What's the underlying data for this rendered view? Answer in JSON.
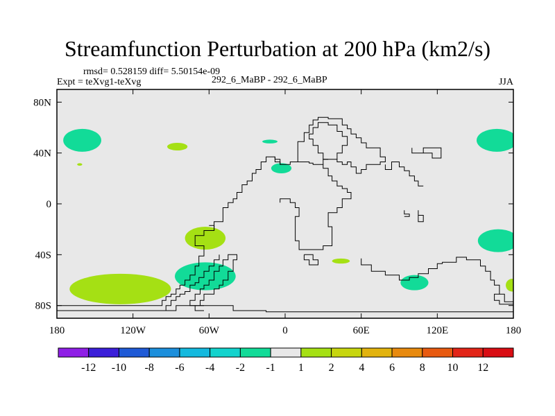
{
  "chart_data": {
    "type": "heatmap",
    "title": "Streamfunction Perturbation at 200 hPa (km2/s)",
    "stats": "rmsd= 0.528159 diff= 5.50154e-09",
    "experiment": "Expt = teXvg1-teXvg",
    "case": "292_6_MaBP - 292_6_MaBP",
    "season": "JJA",
    "xlabel": "",
    "ylabel": "",
    "x_range": [
      -180,
      180
    ],
    "y_range": [
      -90,
      90
    ],
    "x_ticks": [
      {
        "value": -180,
        "label": "180"
      },
      {
        "value": -120,
        "label": "120W"
      },
      {
        "value": -60,
        "label": "60W"
      },
      {
        "value": 0,
        "label": "0"
      },
      {
        "value": 60,
        "label": "60E"
      },
      {
        "value": 120,
        "label": "120E"
      },
      {
        "value": 180,
        "label": "180"
      }
    ],
    "y_ticks": [
      {
        "value": 80,
        "label": "80N"
      },
      {
        "value": 40,
        "label": "40N"
      },
      {
        "value": 0,
        "label": "0"
      },
      {
        "value": -40,
        "label": "40S"
      },
      {
        "value": -80,
        "label": "80S"
      }
    ],
    "background_color": "#e8e8e8",
    "contour_levels": [
      "-12",
      "-10",
      "-8",
      "-6",
      "-4",
      "-2",
      "-1",
      "1",
      "2",
      "4",
      "6",
      "8",
      "10",
      "12"
    ],
    "colorbar_colors": [
      "#8f1fe6",
      "#3b1fd9",
      "#1f5ad6",
      "#1c8fdc",
      "#14b9de",
      "#13d3cd",
      "#12db98",
      "#e8e8e8",
      "#a5e014",
      "#c7d60f",
      "#e2b30e",
      "#e88a0e",
      "#e85a10",
      "#e22518",
      "#d90d14"
    ],
    "anomalies": [
      {
        "lon": -160,
        "lat": 50,
        "rlon": 15,
        "rlat": 9,
        "color": "#12db98"
      },
      {
        "lon": -162,
        "lat": 31,
        "rlon": 2,
        "rlat": 1,
        "color": "#a5e014"
      },
      {
        "lon": -85,
        "lat": 45,
        "rlon": 8,
        "rlat": 3,
        "color": "#a5e014"
      },
      {
        "lon": -12,
        "lat": 49,
        "rlon": 6,
        "rlat": 1.5,
        "color": "#12db98"
      },
      {
        "lon": -3,
        "lat": 28,
        "rlon": 8,
        "rlat": 4,
        "color": "#12db98"
      },
      {
        "lon": -63,
        "lat": -27,
        "rlon": 16,
        "rlat": 9,
        "color": "#a5e014"
      },
      {
        "lon": -130,
        "lat": -67,
        "rlon": 40,
        "rlat": 12,
        "color": "#a5e014"
      },
      {
        "lon": -63,
        "lat": -57,
        "rlon": 24,
        "rlat": 11,
        "color": "#12db98"
      },
      {
        "lon": 44,
        "lat": -45,
        "rlon": 7,
        "rlat": 2,
        "color": "#a5e014"
      },
      {
        "lon": 102,
        "lat": -62,
        "rlon": 11,
        "rlat": 6,
        "color": "#12db98"
      },
      {
        "lon": 168,
        "lat": -29,
        "rlon": 16,
        "rlat": 9,
        "color": "#12db98"
      },
      {
        "lon": 167,
        "lat": 50,
        "rlon": 16,
        "rlat": 9,
        "color": "#12db98"
      },
      {
        "lon": 179,
        "lat": -64,
        "rlon": 5,
        "rlat": 5,
        "color": "#a5e014"
      }
    ],
    "coastlines": [
      [
        [
          -180,
          -80
        ],
        [
          -97,
          -80
        ],
        [
          -97,
          -76
        ],
        [
          -94,
          -76
        ],
        [
          -94,
          -73
        ],
        [
          -90,
          -73
        ],
        [
          -90,
          -71
        ],
        [
          -86,
          -71
        ],
        [
          -86,
          -67
        ],
        [
          -83,
          -67
        ],
        [
          -83,
          -64
        ],
        [
          -79,
          -64
        ],
        [
          -79,
          -60
        ],
        [
          -75,
          -60
        ],
        [
          -75,
          -56
        ],
        [
          -71,
          -56
        ],
        [
          -71,
          -49
        ],
        [
          -68,
          -49
        ],
        [
          -68,
          -41
        ],
        [
          -64,
          -41
        ],
        [
          -64,
          -33
        ],
        [
          -71,
          -33
        ],
        [
          -71,
          -25
        ],
        [
          -64,
          -25
        ],
        [
          -64,
          -21
        ],
        [
          -56,
          -21
        ],
        [
          -56,
          -14
        ],
        [
          -49,
          -14
        ],
        [
          -49,
          -3
        ],
        [
          -45,
          -3
        ],
        [
          -45,
          1
        ],
        [
          -41,
          1
        ],
        [
          -41,
          4
        ],
        [
          -38,
          4
        ],
        [
          -38,
          9
        ],
        [
          -34,
          9
        ],
        [
          -34,
          15
        ],
        [
          -30,
          15
        ],
        [
          -30,
          18
        ],
        [
          -26,
          18
        ],
        [
          -26,
          24
        ],
        [
          -23,
          24
        ],
        [
          -23,
          27
        ],
        [
          -19,
          27
        ],
        [
          -19,
          33
        ],
        [
          -15,
          33
        ],
        [
          -15,
          37
        ],
        [
          -8,
          37
        ],
        [
          -8,
          33
        ],
        [
          -4,
          33
        ],
        [
          -4,
          31
        ],
        [
          4,
          31
        ],
        [
          4,
          33
        ],
        [
          19,
          33
        ],
        [
          19,
          32
        ],
        [
          22,
          32
        ],
        [
          22,
          31
        ],
        [
          30,
          31
        ],
        [
          30,
          28
        ],
        [
          34,
          28
        ],
        [
          34,
          22
        ],
        [
          37,
          22
        ],
        [
          37,
          18
        ],
        [
          41,
          18
        ],
        [
          41,
          14
        ],
        [
          45,
          14
        ],
        [
          45,
          12
        ],
        [
          49,
          12
        ],
        [
          49,
          9
        ],
        [
          52,
          9
        ],
        [
          52,
          4
        ],
        [
          45,
          4
        ],
        [
          45,
          -3
        ],
        [
          41,
          -3
        ],
        [
          41,
          -7
        ],
        [
          34,
          -7
        ],
        [
          34,
          -18
        ],
        [
          37,
          -18
        ],
        [
          37,
          -33
        ],
        [
          30,
          -33
        ],
        [
          30,
          -36
        ],
        [
          11,
          -36
        ],
        [
          11,
          -29
        ],
        [
          8,
          -29
        ],
        [
          8,
          -10
        ],
        [
          11,
          -10
        ],
        [
          11,
          -3
        ],
        [
          8,
          -3
        ],
        [
          8,
          1
        ],
        [
          4,
          1
        ],
        [
          4,
          4
        ],
        [
          -4,
          4
        ],
        [
          -4,
          1
        ]
      ],
      [
        [
          -180,
          -84
        ],
        [
          -86,
          -84
        ],
        [
          -86,
          -80
        ],
        [
          -41,
          -80
        ],
        [
          -41,
          -84
        ],
        [
          -15,
          -84
        ],
        [
          -15,
          -85
        ],
        [
          180,
          -85
        ]
      ],
      [
        [
          -64,
          -84
        ],
        [
          -71,
          -84
        ],
        [
          -71,
          -80
        ],
        [
          -67,
          -80
        ],
        [
          -67,
          -76
        ],
        [
          -64,
          -76
        ],
        [
          -64,
          -71
        ],
        [
          -56,
          -71
        ],
        [
          -56,
          -67
        ],
        [
          -52,
          -67
        ],
        [
          -52,
          -64
        ],
        [
          -49,
          -64
        ],
        [
          -49,
          -60
        ],
        [
          -45,
          -60
        ],
        [
          -45,
          -53
        ],
        [
          -41,
          -53
        ],
        [
          -41,
          -44
        ],
        [
          -38,
          -44
        ],
        [
          -38,
          -40
        ],
        [
          -45,
          -40
        ],
        [
          -45,
          -44
        ],
        [
          -49,
          -44
        ],
        [
          -49,
          -49
        ],
        [
          -52,
          -49
        ],
        [
          -52,
          -53
        ],
        [
          -56,
          -53
        ],
        [
          -56,
          -60
        ],
        [
          -60,
          -60
        ],
        [
          -60,
          -64
        ],
        [
          -64,
          -64
        ],
        [
          -64,
          -67
        ],
        [
          -67,
          -67
        ],
        [
          -67,
          -71
        ],
        [
          -71,
          -71
        ],
        [
          -71,
          -76
        ],
        [
          -75,
          -76
        ],
        [
          -75,
          -80
        ],
        [
          -64,
          -80
        ]
      ],
      [
        [
          -94,
          -84
        ],
        [
          -94,
          -80
        ],
        [
          -90,
          -80
        ],
        [
          -90,
          -76
        ],
        [
          -86,
          -76
        ],
        [
          -86,
          -73
        ],
        [
          -83,
          -73
        ],
        [
          -83,
          -71
        ],
        [
          -79,
          -71
        ],
        [
          -79,
          -69
        ],
        [
          -75,
          -69
        ],
        [
          -75,
          -64
        ],
        [
          -71,
          -64
        ],
        [
          -71,
          -62
        ],
        [
          -68,
          -62
        ],
        [
          -68,
          -58
        ],
        [
          -64,
          -58
        ],
        [
          -64,
          -53
        ],
        [
          -60,
          -53
        ],
        [
          -60,
          -49
        ],
        [
          -56,
          -49
        ],
        [
          -56,
          -44
        ],
        [
          -52,
          -44
        ],
        [
          -52,
          -40
        ]
      ],
      [
        [
          10,
          33
        ],
        [
          10,
          49
        ],
        [
          15,
          49
        ],
        [
          15,
          56
        ],
        [
          19,
          56
        ],
        [
          19,
          62
        ],
        [
          22,
          62
        ],
        [
          22,
          66
        ],
        [
          26,
          66
        ],
        [
          26,
          68
        ],
        [
          34,
          68
        ],
        [
          34,
          67
        ],
        [
          45,
          67
        ],
        [
          45,
          62
        ],
        [
          49,
          62
        ],
        [
          49,
          59
        ],
        [
          52,
          59
        ],
        [
          52,
          55
        ],
        [
          56,
          55
        ],
        [
          56,
          52
        ],
        [
          60,
          52
        ],
        [
          60,
          48
        ],
        [
          64,
          48
        ],
        [
          64,
          44
        ],
        [
          75,
          44
        ],
        [
          75,
          37
        ],
        [
          79,
          37
        ],
        [
          79,
          33
        ],
        [
          75,
          33
        ],
        [
          75,
          31
        ],
        [
          64,
          31
        ],
        [
          64,
          27
        ],
        [
          60,
          27
        ],
        [
          60,
          24
        ],
        [
          56,
          24
        ],
        [
          56,
          29
        ],
        [
          52,
          29
        ],
        [
          52,
          33
        ],
        [
          49,
          33
        ],
        [
          49,
          31
        ],
        [
          45,
          31
        ],
        [
          45,
          33
        ],
        [
          41,
          33
        ],
        [
          41,
          35
        ],
        [
          30,
          35
        ],
        [
          30,
          31
        ]
      ],
      [
        [
          34,
          35
        ],
        [
          30,
          35
        ],
        [
          30,
          40
        ],
        [
          26,
          40
        ],
        [
          26,
          46
        ],
        [
          22,
          46
        ],
        [
          22,
          51
        ],
        [
          19,
          51
        ],
        [
          19,
          55
        ],
        [
          22,
          55
        ],
        [
          22,
          60
        ],
        [
          26,
          60
        ],
        [
          26,
          64
        ],
        [
          34,
          64
        ],
        [
          34,
          62
        ],
        [
          41,
          62
        ],
        [
          41,
          57
        ],
        [
          45,
          57
        ],
        [
          45,
          53
        ],
        [
          49,
          53
        ],
        [
          49,
          46
        ],
        [
          45,
          46
        ],
        [
          45,
          40
        ],
        [
          41,
          40
        ],
        [
          41,
          35
        ]
      ],
      [
        [
          -4,
          31
        ],
        [
          -4,
          35
        ],
        [
          -8,
          35
        ],
        [
          -8,
          37
        ]
      ],
      [
        [
          100,
          44
        ],
        [
          100,
          40
        ],
        [
          109,
          40
        ],
        [
          109,
          44
        ],
        [
          123,
          44
        ],
        [
          123,
          40
        ],
        [
          123,
          36
        ],
        [
          116,
          36
        ],
        [
          116,
          40
        ],
        [
          104,
          40
        ]
      ],
      [
        [
          79,
          31
        ],
        [
          79,
          27
        ],
        [
          84,
          27
        ],
        [
          84,
          33
        ],
        [
          90,
          33
        ],
        [
          90,
          29
        ],
        [
          94,
          29
        ],
        [
          94,
          26
        ],
        [
          98,
          26
        ],
        [
          98,
          22
        ],
        [
          102,
          22
        ],
        [
          102,
          18
        ],
        [
          105,
          18
        ],
        [
          105,
          14
        ],
        [
          109,
          14
        ]
      ],
      [
        [
          60,
          -43
        ],
        [
          60,
          -48
        ],
        [
          68,
          -48
        ],
        [
          68,
          -53
        ],
        [
          79,
          -53
        ],
        [
          79,
          -56
        ],
        [
          90,
          -56
        ],
        [
          90,
          -60
        ],
        [
          98,
          -60
        ],
        [
          98,
          -58
        ],
        [
          105,
          -58
        ],
        [
          105,
          -55
        ],
        [
          113,
          -55
        ],
        [
          113,
          -51
        ],
        [
          120,
          -51
        ],
        [
          120,
          -47
        ],
        [
          124,
          -47
        ],
        [
          124,
          -46
        ],
        [
          135,
          -46
        ],
        [
          135,
          -42
        ],
        [
          143,
          -42
        ],
        [
          143,
          -44
        ],
        [
          154,
          -44
        ],
        [
          154,
          -49
        ],
        [
          158,
          -49
        ],
        [
          158,
          -53
        ],
        [
          162,
          -53
        ],
        [
          162,
          -60
        ],
        [
          165,
          -60
        ],
        [
          165,
          -64
        ],
        [
          169,
          -64
        ],
        [
          169,
          -71
        ],
        [
          173,
          -71
        ],
        [
          173,
          -77
        ],
        [
          180,
          -77
        ]
      ],
      [
        [
          94,
          -5
        ],
        [
          94,
          -8
        ],
        [
          98,
          -8
        ],
        [
          98,
          -10
        ],
        [
          94,
          -10
        ]
      ],
      [
        [
          105,
          -5
        ],
        [
          105,
          -14
        ],
        [
          109,
          -14
        ],
        [
          109,
          -9
        ],
        [
          105,
          -9
        ]
      ],
      [
        [
          169,
          -71
        ],
        [
          165,
          -71
        ],
        [
          165,
          -76
        ],
        [
          169,
          -76
        ],
        [
          169,
          -79
        ],
        [
          180,
          -79
        ]
      ],
      [
        [
          -60,
          -17
        ],
        [
          -56,
          -17
        ],
        [
          -56,
          -21
        ]
      ],
      [
        [
          15,
          -40
        ],
        [
          22,
          -40
        ],
        [
          22,
          -44
        ],
        [
          26,
          -44
        ],
        [
          26,
          -48
        ],
        [
          19,
          -48
        ],
        [
          19,
          -44
        ],
        [
          15,
          -44
        ],
        [
          15,
          -40
        ]
      ]
    ]
  }
}
